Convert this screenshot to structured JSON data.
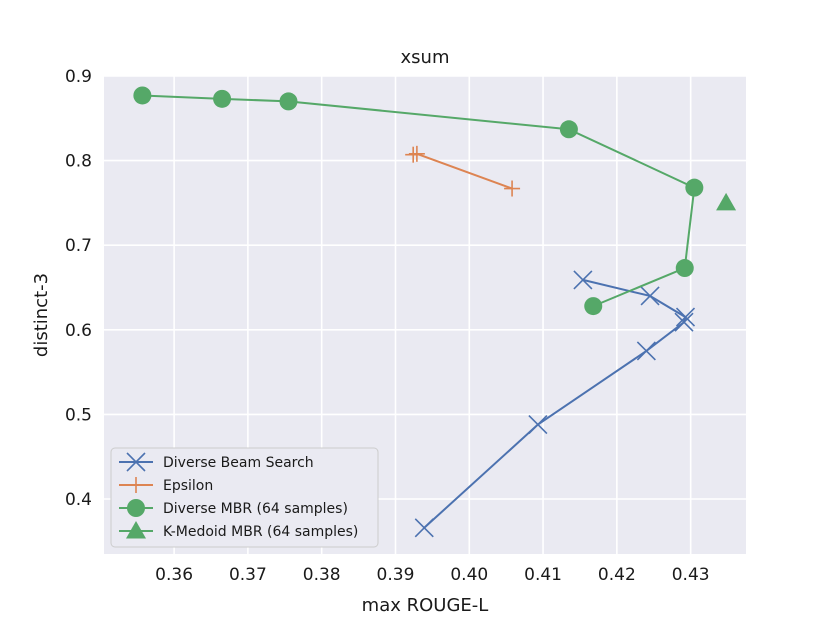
{
  "chart_data": {
    "type": "line",
    "title": "xsum",
    "xlabel": "max ROUGE-L",
    "ylabel": "distinct-3",
    "xlim": [
      0.3505,
      0.4375
    ],
    "ylim": [
      0.335,
      0.9
    ],
    "xticks": [
      "0.36",
      "0.37",
      "0.38",
      "0.39",
      "0.40",
      "0.41",
      "0.42",
      "0.43"
    ],
    "yticks": [
      "0.4",
      "0.5",
      "0.6",
      "0.7",
      "0.8",
      "0.9"
    ],
    "grid": true,
    "legend_position": "lower-left",
    "series": [
      {
        "name": "Diverse Beam Search",
        "color": "#4c72b0",
        "marker": "x",
        "x": [
          0.3939,
          0.4093,
          0.424,
          0.4291,
          0.4293,
          0.4245,
          0.4154
        ],
        "y": [
          0.366,
          0.488,
          0.575,
          0.609,
          0.615,
          0.64,
          0.659
        ]
      },
      {
        "name": "Epsilon",
        "color": "#dd8452",
        "marker": "plus",
        "x": [
          0.3924,
          0.3929,
          0.4058
        ],
        "y": [
          0.807,
          0.808,
          0.767
        ]
      },
      {
        "name": "Diverse MBR (64 samples)",
        "color": "#55a868",
        "marker": "circle",
        "x": [
          0.3557,
          0.3665,
          0.3755,
          0.4135,
          0.4305,
          0.4292,
          0.4168
        ],
        "y": [
          0.877,
          0.873,
          0.87,
          0.837,
          0.768,
          0.673,
          0.628
        ]
      },
      {
        "name": "K-Medoid MBR (64 samples)",
        "color": "#55a868",
        "marker": "triangle",
        "line": false,
        "x": [
          0.4348
        ],
        "y": [
          0.75
        ]
      }
    ]
  }
}
